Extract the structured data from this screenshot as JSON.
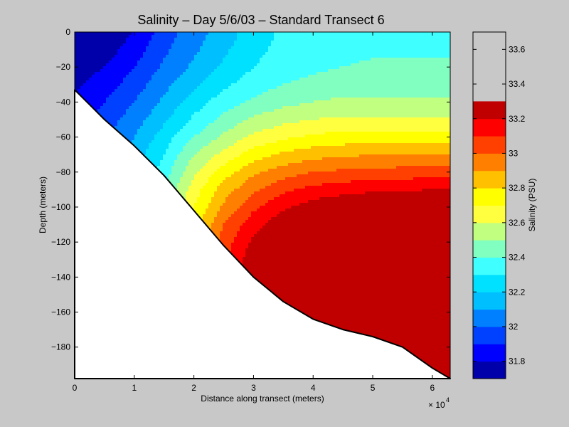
{
  "chart_data": {
    "type": "heatmap",
    "subtype": "filled-contour",
    "title": "Salinity – Day 5/6/03 – Standard Transect 6",
    "xlabel": "Distance along transect (meters)",
    "ylabel": "Depth (meters)",
    "x_multiplier": "× 10",
    "x_multiplier_exp": "4",
    "xlim": [
      0,
      63000
    ],
    "ylim": [
      -198,
      0
    ],
    "x_ticks": [
      0,
      10000,
      20000,
      30000,
      40000,
      50000,
      60000
    ],
    "x_tick_labels": [
      "0",
      "1",
      "2",
      "3",
      "4",
      "5",
      "6"
    ],
    "y_ticks": [
      0,
      -20,
      -40,
      -60,
      -80,
      -100,
      -120,
      -140,
      -160,
      -180
    ],
    "y_tick_labels": [
      "0",
      "−20",
      "−40",
      "−60",
      "−80",
      "−100",
      "−120",
      "−140",
      "−160",
      "−180"
    ],
    "grid": false,
    "colorbar": {
      "label": "Salinity (PSU)",
      "range": [
        31.7,
        33.7
      ],
      "levels": [
        31.7,
        31.8,
        31.9,
        32.0,
        32.1,
        32.2,
        32.3,
        32.4,
        32.5,
        32.6,
        32.7,
        32.8,
        32.9,
        33.0,
        33.1,
        33.2,
        33.3,
        33.4,
        33.5,
        33.6,
        33.7
      ],
      "colors": [
        "#0000aa",
        "#0000ff",
        "#0040ff",
        "#0080ff",
        "#00bfff",
        "#00e0ff",
        "#40ffff",
        "#80ffc0",
        "#c0ff80",
        "#ffff40",
        "#ffff00",
        "#ffc000",
        "#ff8000",
        "#ff4000",
        "#ff0000",
        "#c00000"
      ],
      "ticks": [
        31.8,
        32.0,
        32.2,
        32.4,
        32.6,
        32.8,
        33.0,
        33.2,
        33.4,
        33.6
      ],
      "tick_labels": [
        "31.8",
        "32",
        "32.2",
        "32.4",
        "32.6",
        "32.8",
        "33",
        "33.2",
        "33.4",
        "33.6"
      ]
    },
    "bottom_profile": {
      "x": [
        0,
        5000,
        10000,
        15000,
        20000,
        25000,
        30000,
        35000,
        40000,
        45000,
        50000,
        55000,
        60000,
        63000
      ],
      "depth": [
        -33,
        -50,
        -65,
        -82,
        -102,
        -122,
        -140,
        -154,
        -164,
        -170,
        -174,
        -180,
        -192,
        -198
      ]
    },
    "salinity_grid": {
      "x": [
        0,
        5000,
        10000,
        15000,
        20000,
        25000,
        30000,
        35000,
        40000,
        45000,
        50000,
        55000,
        60000,
        63000
      ],
      "depth": [
        0,
        -10,
        -20,
        -30,
        -40,
        -50,
        -60,
        -70,
        -80,
        -90,
        -100,
        -110,
        -120,
        -130,
        -140,
        -150,
        -160,
        -170,
        -180,
        -190,
        -198
      ],
      "values": [
        [
          31.72,
          31.73,
          31.8,
          31.95,
          32.05,
          32.15,
          32.25,
          32.32,
          32.35,
          32.37,
          32.38,
          32.38,
          32.38,
          32.38
        ],
        [
          31.73,
          31.75,
          31.85,
          31.98,
          32.08,
          32.18,
          32.27,
          32.33,
          32.36,
          32.38,
          32.39,
          32.39,
          32.39,
          32.39
        ],
        [
          31.75,
          31.8,
          31.9,
          32.02,
          32.12,
          32.22,
          32.3,
          32.35,
          32.38,
          32.4,
          32.41,
          32.41,
          32.41,
          32.41
        ],
        [
          31.78,
          31.85,
          31.95,
          32.07,
          32.18,
          32.28,
          32.35,
          32.4,
          32.43,
          32.45,
          32.45,
          32.45,
          32.45,
          32.45
        ],
        [
          31.82,
          31.9,
          32.0,
          32.12,
          32.25,
          32.35,
          32.42,
          32.47,
          32.5,
          32.52,
          32.52,
          32.52,
          32.52,
          32.52
        ],
        [
          31.85,
          31.95,
          32.05,
          32.18,
          32.32,
          32.43,
          32.52,
          32.57,
          32.6,
          32.62,
          32.62,
          32.62,
          32.62,
          32.62
        ],
        [
          31.88,
          31.98,
          32.1,
          32.25,
          32.4,
          32.52,
          32.62,
          32.68,
          32.72,
          32.74,
          32.75,
          32.75,
          32.75,
          32.75
        ],
        [
          31.9,
          32.0,
          32.15,
          32.3,
          32.5,
          32.63,
          32.75,
          32.82,
          32.86,
          32.88,
          32.9,
          32.9,
          32.9,
          32.9
        ],
        [
          31.92,
          32.03,
          32.18,
          32.35,
          32.58,
          32.75,
          32.88,
          32.95,
          33.0,
          33.02,
          33.03,
          33.04,
          33.05,
          33.05
        ],
        [
          31.95,
          32.05,
          32.22,
          32.4,
          32.65,
          32.85,
          32.98,
          33.08,
          33.13,
          33.16,
          33.18,
          33.19,
          33.2,
          33.2
        ],
        [
          31.97,
          32.08,
          32.25,
          32.45,
          32.7,
          32.92,
          33.08,
          33.18,
          33.25,
          33.29,
          33.31,
          33.33,
          33.33,
          33.33
        ],
        [
          31.99,
          32.1,
          32.28,
          32.48,
          32.75,
          33.0,
          33.16,
          33.28,
          33.35,
          33.4,
          33.43,
          33.44,
          33.45,
          33.45
        ],
        [
          32.0,
          32.12,
          32.3,
          32.52,
          32.8,
          33.05,
          33.22,
          33.35,
          33.43,
          33.5,
          33.53,
          33.54,
          33.54,
          33.54
        ],
        [
          32.02,
          32.14,
          32.32,
          32.55,
          32.84,
          33.08,
          33.27,
          33.41,
          33.52,
          33.57,
          33.6,
          33.61,
          33.61,
          33.61
        ],
        [
          32.03,
          32.15,
          32.34,
          32.58,
          32.87,
          33.1,
          33.3,
          33.45,
          33.56,
          33.62,
          33.65,
          33.66,
          33.66,
          33.66
        ],
        [
          32.04,
          32.16,
          32.35,
          32.6,
          32.89,
          33.12,
          33.33,
          33.47,
          33.59,
          33.64,
          33.66,
          33.68,
          33.68,
          33.68
        ],
        [
          32.05,
          32.17,
          32.36,
          32.61,
          32.9,
          33.13,
          33.34,
          33.49,
          33.6,
          33.65,
          33.67,
          33.69,
          33.69,
          33.69
        ],
        [
          32.05,
          32.17,
          32.37,
          32.62,
          32.91,
          33.14,
          33.35,
          33.5,
          33.6,
          33.65,
          33.68,
          33.69,
          33.69,
          33.69
        ],
        [
          32.06,
          32.18,
          32.37,
          32.62,
          32.91,
          33.14,
          33.35,
          33.5,
          33.61,
          33.66,
          33.68,
          33.69,
          33.69,
          33.69
        ],
        [
          32.06,
          32.18,
          32.38,
          32.63,
          32.92,
          33.15,
          33.36,
          33.5,
          33.61,
          33.66,
          33.68,
          33.69,
          33.69,
          33.69
        ],
        [
          32.06,
          32.18,
          32.38,
          32.63,
          32.92,
          33.15,
          33.36,
          33.5,
          33.61,
          33.66,
          33.68,
          33.69,
          33.69,
          33.69
        ]
      ]
    }
  }
}
